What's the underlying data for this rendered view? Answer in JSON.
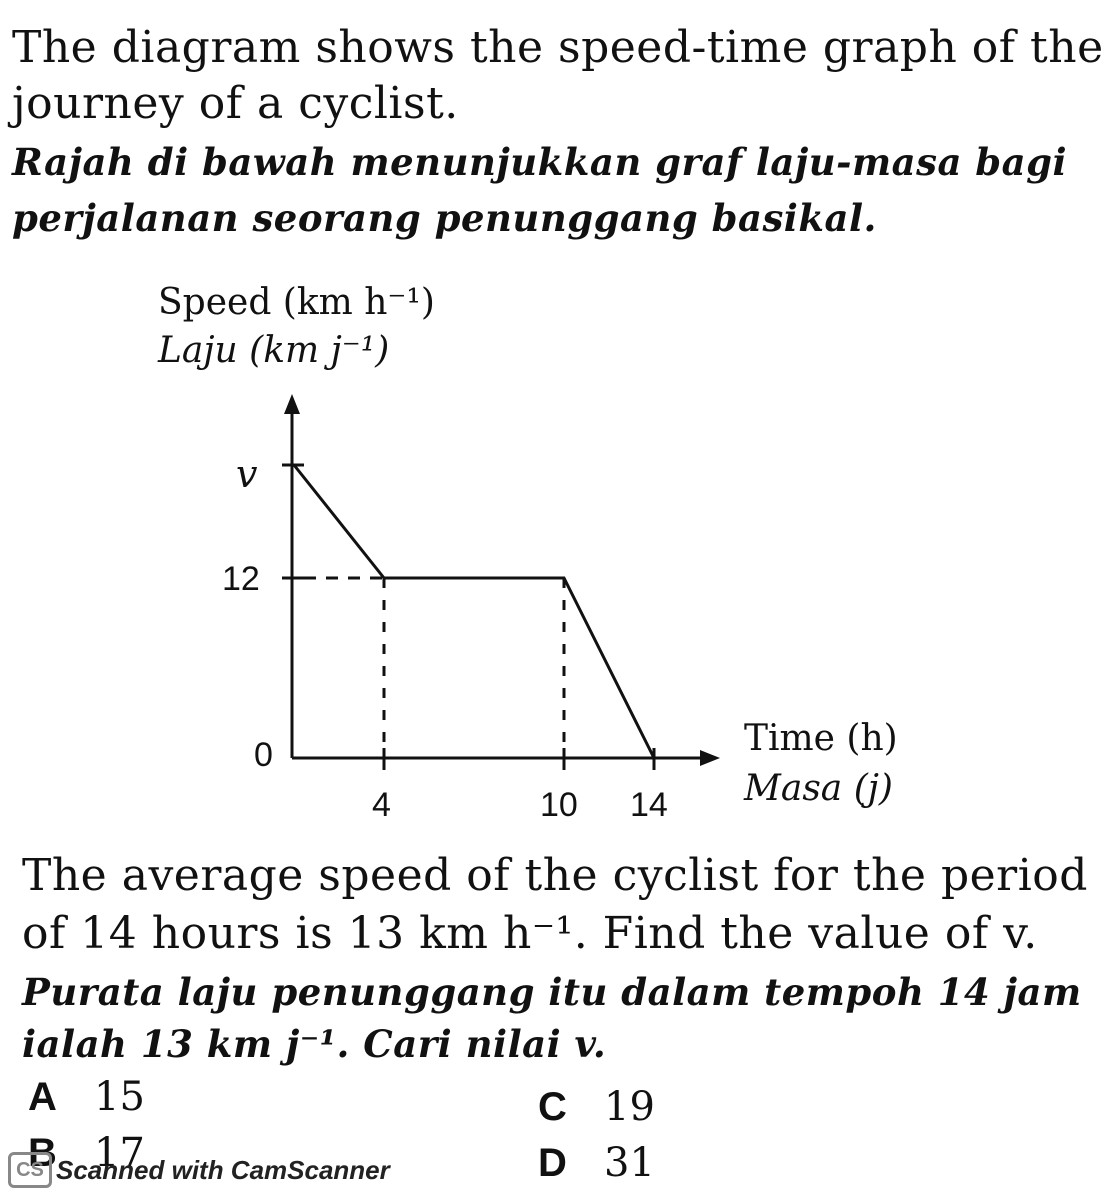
{
  "question": {
    "en_intro_1": "The diagram shows the speed-time graph of the",
    "en_intro_2": "journey of a cyclist.",
    "my_intro_1": "Rajah di bawah menunjukkan graf laju-masa bagi",
    "my_intro_2": "perjalanan seorang penunggang basikal.",
    "en_q_1": "The average speed of the cyclist for the period",
    "en_q_2": "of 14 hours is 13 km h⁻¹. Find the value of v.",
    "my_q_1": "Purata laju penunggang itu dalam tempoh 14 jam",
    "my_q_2": "ialah 13 km j⁻¹. Cari nilai v."
  },
  "graph": {
    "y_title_en": "Speed (km h⁻¹)",
    "y_title_my": "Laju (km j⁻¹)",
    "x_title_en": "Time (h)",
    "x_title_my": "Masa (j)",
    "y_ticks": [
      "v",
      "12",
      "0"
    ],
    "x_ticks": [
      "4",
      "10",
      "14"
    ],
    "segments": [
      {
        "t": 0,
        "speed": "v"
      },
      {
        "t": 4,
        "speed": 12
      },
      {
        "t": 10,
        "speed": 12
      },
      {
        "t": 14,
        "speed": 0
      }
    ]
  },
  "options": [
    {
      "letter": "A",
      "value": "15"
    },
    {
      "letter": "B",
      "value": "17"
    },
    {
      "letter": "C",
      "value": "19"
    },
    {
      "letter": "D",
      "value": "31"
    }
  ],
  "watermark": {
    "logo": "CS",
    "text": "Scanned with CamScanner"
  }
}
